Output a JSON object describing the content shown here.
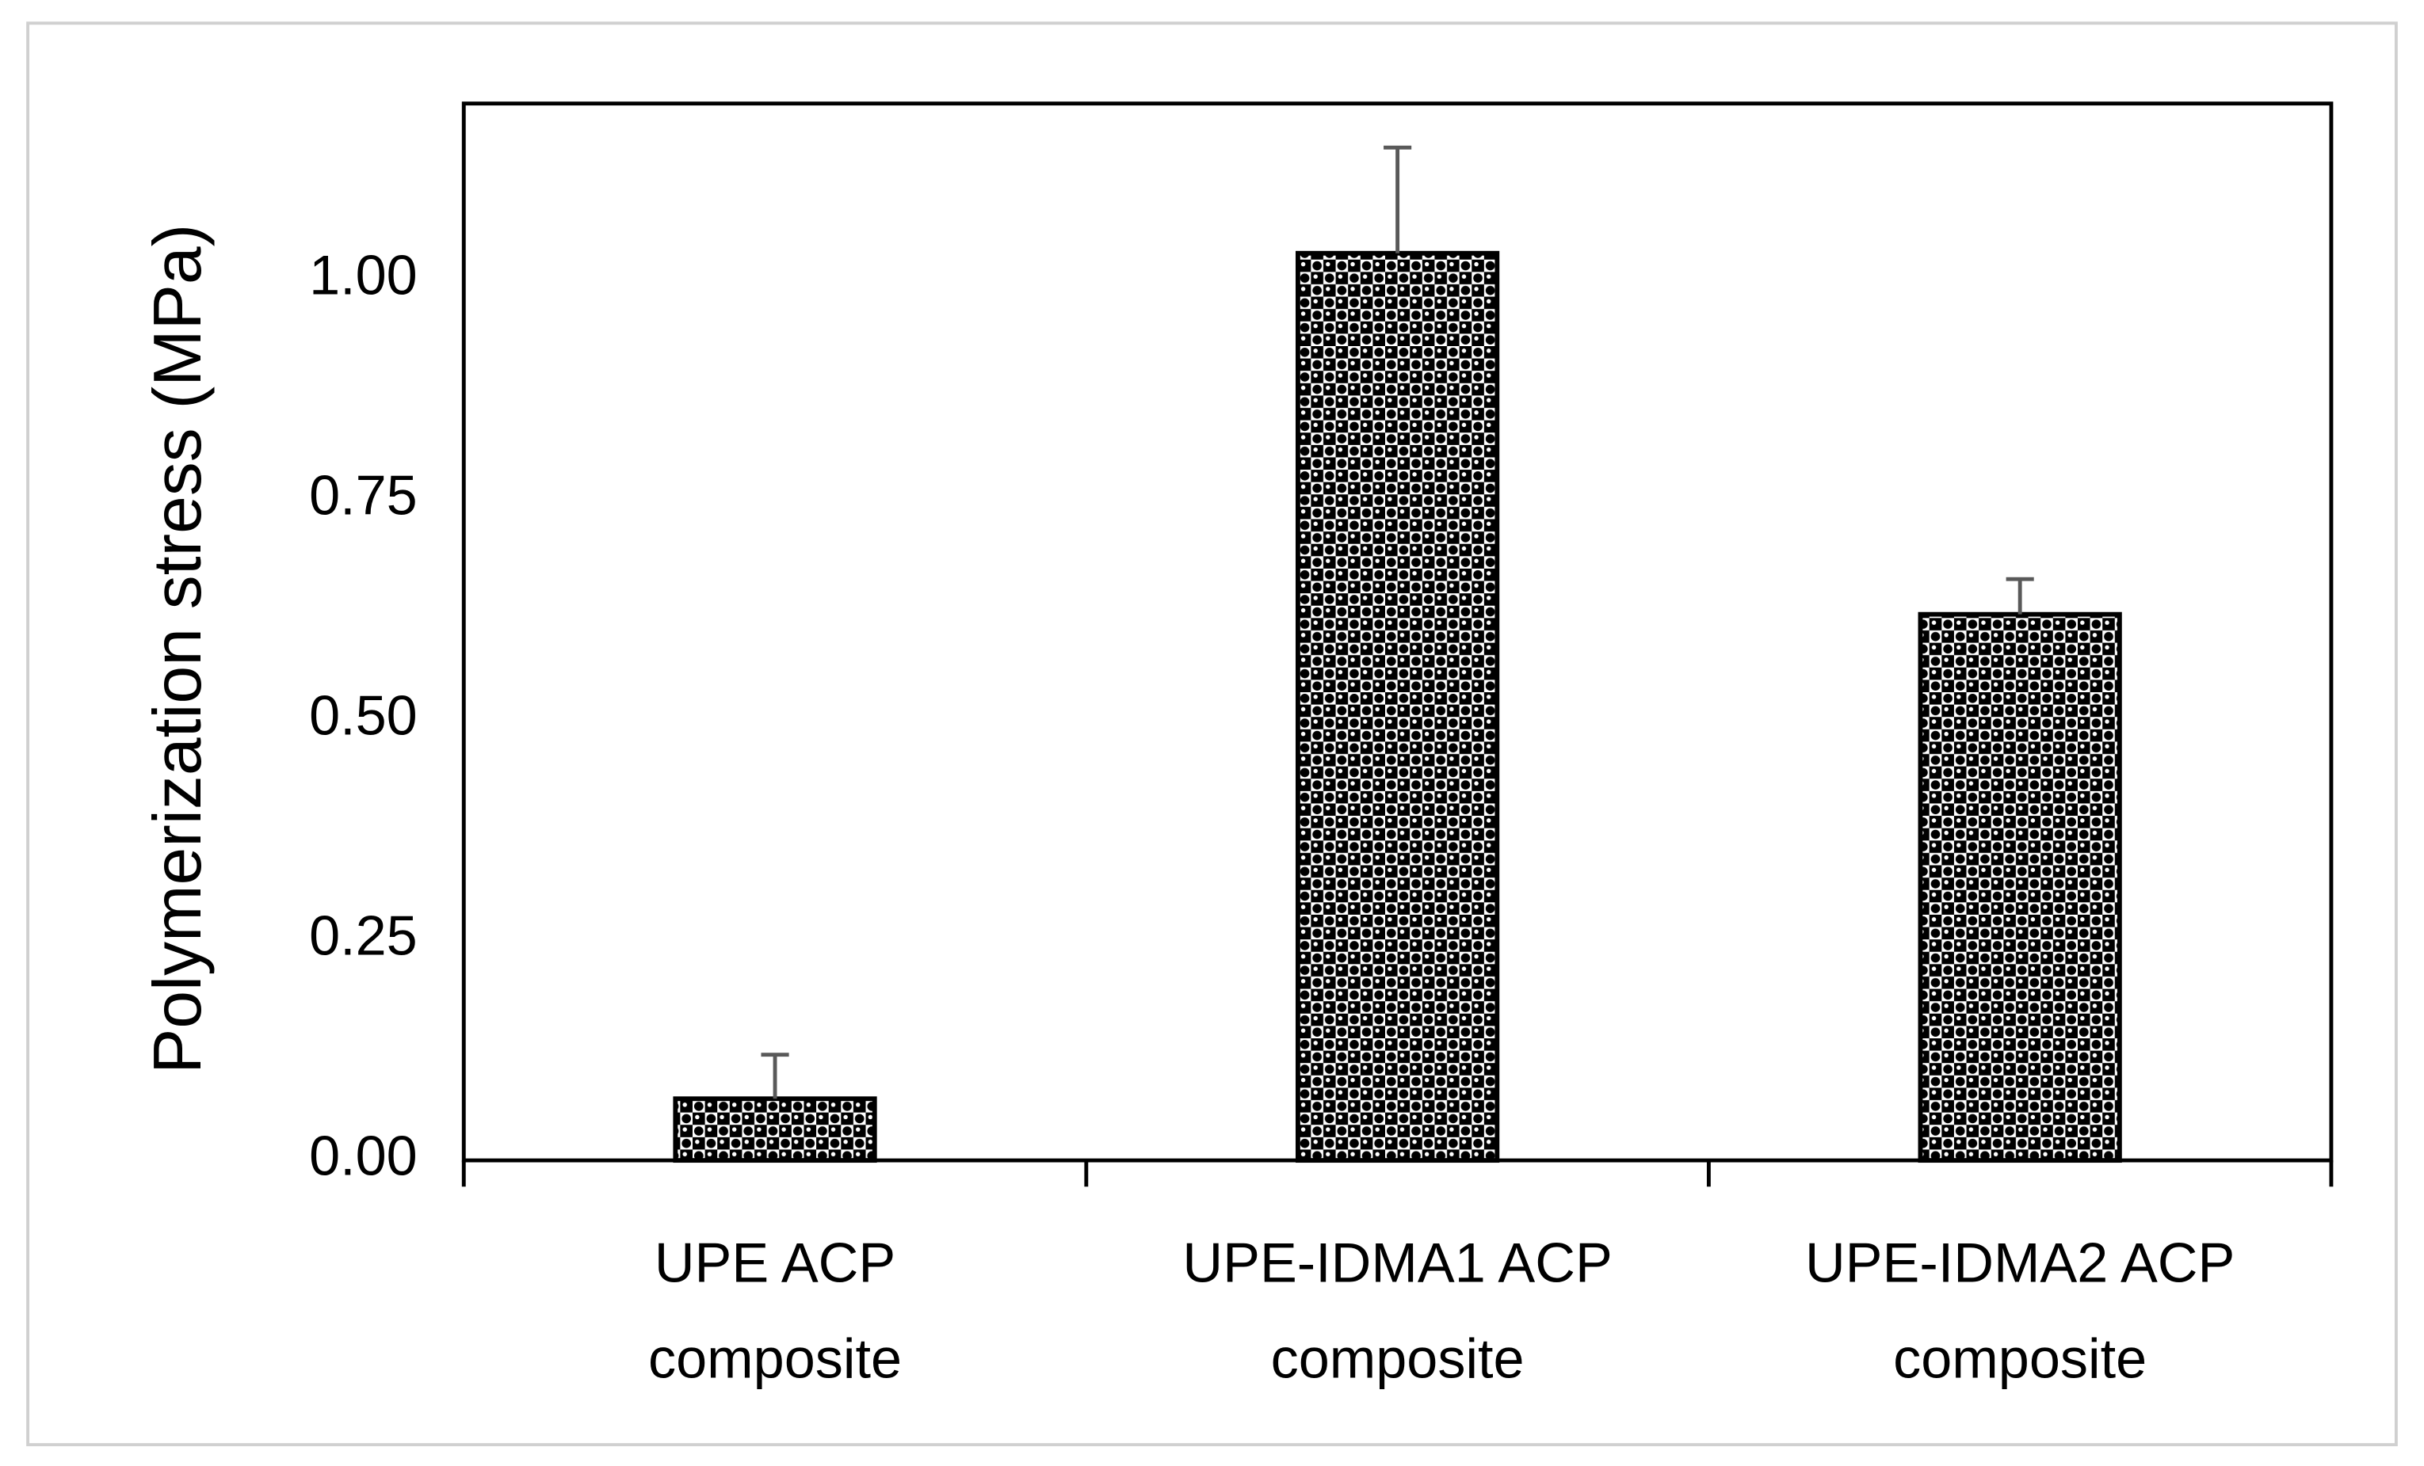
{
  "chart_data": {
    "type": "bar",
    "y_label": "Polymerization stress (MPa)",
    "categories": [
      "UPE ACP composite",
      "UPE-IDMA1 ACP composite",
      "UPE-IDMA2 ACP composite"
    ],
    "values": [
      0.07,
      1.03,
      0.62
    ],
    "errors": [
      0.05,
      0.12,
      0.04
    ],
    "color": "#000000",
    "error_color": "#595959",
    "ylim": [
      0,
      1.2
    ],
    "yticks": [
      {
        "value": 0,
        "label": "0.00"
      },
      {
        "value": 0.25,
        "label": "0.25"
      },
      {
        "value": 0.5,
        "label": "0.50"
      },
      {
        "value": 0.75,
        "label": "0.75"
      },
      {
        "value": 1,
        "label": "1.00"
      }
    ],
    "grid": false
  }
}
